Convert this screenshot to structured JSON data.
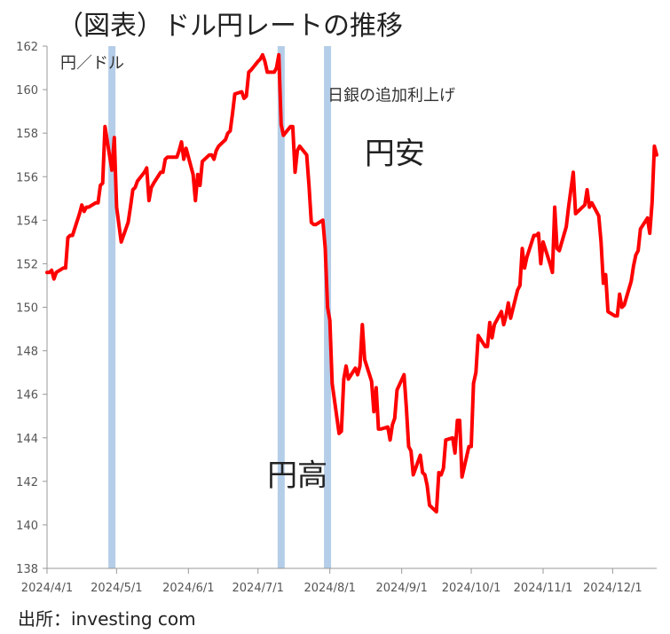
{
  "header": {
    "title": "（図表）ドル円レートの推移"
  },
  "footer": {
    "source": "出所：investing com"
  },
  "chart_data": {
    "type": "line",
    "title": "（図表）ドル円レートの推移",
    "ylabel": "円／ドル",
    "xlabel": "",
    "ylim": [
      138,
      162
    ],
    "xlim": [
      "2024-04-01",
      "2024-12-20"
    ],
    "yticks": [
      138,
      140,
      142,
      144,
      146,
      148,
      150,
      152,
      154,
      156,
      158,
      160,
      162
    ],
    "xticks": [
      {
        "date": "2024-04-01",
        "label": "2024/4/1"
      },
      {
        "date": "2024-05-01",
        "label": "2024/5/1"
      },
      {
        "date": "2024-06-01",
        "label": "2024/6/1"
      },
      {
        "date": "2024-07-01",
        "label": "2024/7/1"
      },
      {
        "date": "2024-08-01",
        "label": "2024/8/1"
      },
      {
        "date": "2024-09-01",
        "label": "2024/9/1"
      },
      {
        "date": "2024-10-01",
        "label": "2024/10/1"
      },
      {
        "date": "2024-11-01",
        "label": "2024/11/1"
      },
      {
        "date": "2024-12-01",
        "label": "2024/12/1"
      }
    ],
    "grid": false,
    "line_color": "#ff0000",
    "band_color": "#b4cde8",
    "bands": [
      {
        "date": "2024-04-29"
      },
      {
        "date": "2024-07-11"
      },
      {
        "date": "2024-07-31"
      }
    ],
    "annotations": [
      {
        "text": "日銀の追加利上げ",
        "date": "2024-07-31",
        "y": 159.5,
        "size": "small"
      },
      {
        "text": "円安",
        "date": "2024-08-16",
        "y": 156.6,
        "size": "big"
      },
      {
        "text": "円高",
        "date": "2024-07-05",
        "y": 141.8,
        "size": "big"
      }
    ],
    "series": [
      {
        "points": [
          [
            "2024-04-01",
            151.6
          ],
          [
            "2024-04-02",
            151.6
          ],
          [
            "2024-04-03",
            151.7
          ],
          [
            "2024-04-04",
            151.3
          ],
          [
            "2024-04-05",
            151.6
          ],
          [
            "2024-04-08",
            151.8
          ],
          [
            "2024-04-09",
            151.8
          ],
          [
            "2024-04-10",
            153.2
          ],
          [
            "2024-04-11",
            153.3
          ],
          [
            "2024-04-12",
            153.3
          ],
          [
            "2024-04-15",
            154.3
          ],
          [
            "2024-04-16",
            154.7
          ],
          [
            "2024-04-17",
            154.4
          ],
          [
            "2024-04-18",
            154.6
          ],
          [
            "2024-04-19",
            154.6
          ],
          [
            "2024-04-22",
            154.8
          ],
          [
            "2024-04-23",
            154.8
          ],
          [
            "2024-04-24",
            155.6
          ],
          [
            "2024-04-25",
            155.7
          ],
          [
            "2024-04-26",
            158.3
          ],
          [
            "2024-04-29",
            156.3
          ],
          [
            "2024-04-30",
            157.8
          ],
          [
            "2024-05-01",
            154.6
          ],
          [
            "2024-05-02",
            153.8
          ],
          [
            "2024-05-03",
            153.0
          ],
          [
            "2024-05-06",
            153.9
          ],
          [
            "2024-05-07",
            154.6
          ],
          [
            "2024-05-08",
            155.4
          ],
          [
            "2024-05-09",
            155.5
          ],
          [
            "2024-05-10",
            155.8
          ],
          [
            "2024-05-13",
            156.2
          ],
          [
            "2024-05-14",
            156.4
          ],
          [
            "2024-05-15",
            154.9
          ],
          [
            "2024-05-16",
            155.5
          ],
          [
            "2024-05-17",
            155.7
          ],
          [
            "2024-05-20",
            156.2
          ],
          [
            "2024-05-21",
            156.2
          ],
          [
            "2024-05-22",
            156.8
          ],
          [
            "2024-05-23",
            156.9
          ],
          [
            "2024-05-24",
            156.9
          ],
          [
            "2024-05-27",
            156.9
          ],
          [
            "2024-05-28",
            157.2
          ],
          [
            "2024-05-29",
            157.6
          ],
          [
            "2024-05-30",
            156.8
          ],
          [
            "2024-05-31",
            157.3
          ],
          [
            "2024-06-03",
            156.1
          ],
          [
            "2024-06-04",
            154.9
          ],
          [
            "2024-06-05",
            156.1
          ],
          [
            "2024-06-06",
            155.6
          ],
          [
            "2024-06-07",
            156.7
          ],
          [
            "2024-06-10",
            157.0
          ],
          [
            "2024-06-11",
            157.0
          ],
          [
            "2024-06-12",
            156.8
          ],
          [
            "2024-06-13",
            157.2
          ],
          [
            "2024-06-14",
            157.4
          ],
          [
            "2024-06-17",
            157.7
          ],
          [
            "2024-06-18",
            158.0
          ],
          [
            "2024-06-19",
            158.1
          ],
          [
            "2024-06-20",
            158.9
          ],
          [
            "2024-06-21",
            159.8
          ],
          [
            "2024-06-24",
            159.9
          ],
          [
            "2024-06-25",
            159.6
          ],
          [
            "2024-06-26",
            159.7
          ],
          [
            "2024-06-27",
            160.8
          ],
          [
            "2024-06-28",
            160.9
          ],
          [
            "2024-07-01",
            161.3
          ],
          [
            "2024-07-02",
            161.4
          ],
          [
            "2024-07-03",
            161.6
          ],
          [
            "2024-07-04",
            161.3
          ],
          [
            "2024-07-05",
            160.8
          ],
          [
            "2024-07-08",
            160.8
          ],
          [
            "2024-07-09",
            161.0
          ],
          [
            "2024-07-10",
            161.6
          ],
          [
            "2024-07-11",
            158.4
          ],
          [
            "2024-07-12",
            157.9
          ],
          [
            "2024-07-15",
            158.3
          ],
          [
            "2024-07-16",
            158.3
          ],
          [
            "2024-07-17",
            156.2
          ],
          [
            "2024-07-18",
            157.2
          ],
          [
            "2024-07-19",
            157.4
          ],
          [
            "2024-07-22",
            157.0
          ],
          [
            "2024-07-23",
            155.6
          ],
          [
            "2024-07-24",
            153.9
          ],
          [
            "2024-07-25",
            153.8
          ],
          [
            "2024-07-26",
            153.8
          ],
          [
            "2024-07-29",
            154.0
          ],
          [
            "2024-07-30",
            152.7
          ],
          [
            "2024-07-31",
            150.0
          ],
          [
            "2024-08-01",
            149.4
          ],
          [
            "2024-08-02",
            146.5
          ],
          [
            "2024-08-05",
            144.2
          ],
          [
            "2024-08-06",
            144.3
          ],
          [
            "2024-08-07",
            146.7
          ],
          [
            "2024-08-08",
            147.3
          ],
          [
            "2024-08-09",
            146.7
          ],
          [
            "2024-08-12",
            147.2
          ],
          [
            "2024-08-13",
            146.9
          ],
          [
            "2024-08-14",
            147.3
          ],
          [
            "2024-08-15",
            149.2
          ],
          [
            "2024-08-16",
            147.6
          ],
          [
            "2024-08-19",
            146.6
          ],
          [
            "2024-08-20",
            145.2
          ],
          [
            "2024-08-21",
            146.3
          ],
          [
            "2024-08-22",
            144.4
          ],
          [
            "2024-08-23",
            144.4
          ],
          [
            "2024-08-26",
            144.5
          ],
          [
            "2024-08-27",
            143.9
          ],
          [
            "2024-08-28",
            144.6
          ],
          [
            "2024-08-29",
            144.9
          ],
          [
            "2024-08-30",
            146.2
          ],
          [
            "2024-09-02",
            146.9
          ],
          [
            "2024-09-03",
            145.4
          ],
          [
            "2024-09-04",
            143.6
          ],
          [
            "2024-09-05",
            143.4
          ],
          [
            "2024-09-06",
            142.3
          ],
          [
            "2024-09-09",
            143.2
          ],
          [
            "2024-09-10",
            142.4
          ],
          [
            "2024-09-11",
            142.3
          ],
          [
            "2024-09-12",
            141.8
          ],
          [
            "2024-09-13",
            140.9
          ],
          [
            "2024-09-16",
            140.6
          ],
          [
            "2024-09-17",
            142.4
          ],
          [
            "2024-09-18",
            142.3
          ],
          [
            "2024-09-19",
            142.6
          ],
          [
            "2024-09-20",
            143.9
          ],
          [
            "2024-09-23",
            144.0
          ],
          [
            "2024-09-24",
            143.3
          ],
          [
            "2024-09-25",
            144.8
          ],
          [
            "2024-09-26",
            144.8
          ],
          [
            "2024-09-27",
            142.2
          ],
          [
            "2024-09-30",
            143.6
          ],
          [
            "2024-10-01",
            143.6
          ],
          [
            "2024-10-02",
            146.5
          ],
          [
            "2024-10-03",
            147.0
          ],
          [
            "2024-10-04",
            148.7
          ],
          [
            "2024-10-07",
            148.2
          ],
          [
            "2024-10-08",
            148.2
          ],
          [
            "2024-10-09",
            149.3
          ],
          [
            "2024-10-10",
            148.6
          ],
          [
            "2024-10-11",
            149.2
          ],
          [
            "2024-10-14",
            149.8
          ],
          [
            "2024-10-15",
            149.2
          ],
          [
            "2024-10-16",
            149.6
          ],
          [
            "2024-10-17",
            150.2
          ],
          [
            "2024-10-18",
            149.5
          ],
          [
            "2024-10-21",
            150.8
          ],
          [
            "2024-10-22",
            151.0
          ],
          [
            "2024-10-23",
            152.7
          ],
          [
            "2024-10-24",
            151.8
          ],
          [
            "2024-10-25",
            152.3
          ],
          [
            "2024-10-28",
            153.3
          ],
          [
            "2024-10-29",
            153.3
          ],
          [
            "2024-10-30",
            153.4
          ],
          [
            "2024-10-31",
            152.0
          ],
          [
            "2024-11-01",
            153.0
          ],
          [
            "2024-11-04",
            152.0
          ],
          [
            "2024-11-05",
            151.6
          ],
          [
            "2024-11-06",
            154.6
          ],
          [
            "2024-11-07",
            152.7
          ],
          [
            "2024-11-08",
            152.6
          ],
          [
            "2024-11-11",
            153.7
          ],
          [
            "2024-11-12",
            154.6
          ],
          [
            "2024-11-13",
            155.4
          ],
          [
            "2024-11-14",
            156.2
          ],
          [
            "2024-11-15",
            154.3
          ],
          [
            "2024-11-18",
            154.6
          ],
          [
            "2024-11-19",
            154.7
          ],
          [
            "2024-11-20",
            155.4
          ],
          [
            "2024-11-21",
            154.6
          ],
          [
            "2024-11-22",
            154.8
          ],
          [
            "2024-11-25",
            154.2
          ],
          [
            "2024-11-26",
            153.0
          ],
          [
            "2024-11-27",
            151.1
          ],
          [
            "2024-11-28",
            151.5
          ],
          [
            "2024-11-29",
            149.8
          ],
          [
            "2024-12-02",
            149.6
          ],
          [
            "2024-12-03",
            149.6
          ],
          [
            "2024-12-04",
            150.6
          ],
          [
            "2024-12-05",
            150.0
          ],
          [
            "2024-12-06",
            150.1
          ],
          [
            "2024-12-09",
            151.2
          ],
          [
            "2024-12-10",
            151.9
          ],
          [
            "2024-12-11",
            152.4
          ],
          [
            "2024-12-12",
            152.6
          ],
          [
            "2024-12-13",
            153.6
          ],
          [
            "2024-12-16",
            154.1
          ],
          [
            "2024-12-17",
            153.4
          ],
          [
            "2024-12-18",
            154.8
          ],
          [
            "2024-12-19",
            157.4
          ],
          [
            "2024-12-20",
            157.0
          ]
        ]
      }
    ]
  }
}
